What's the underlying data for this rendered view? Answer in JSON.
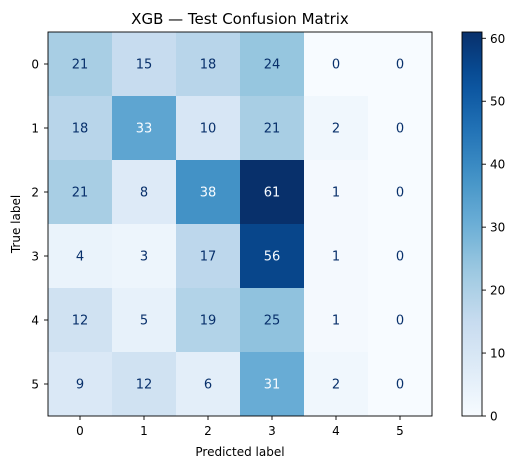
{
  "chart_data": {
    "type": "heatmap",
    "title": "XGB — Test Confusion Matrix",
    "xlabel": "Predicted label",
    "ylabel": "True label",
    "x_categories": [
      "0",
      "1",
      "2",
      "3",
      "4",
      "5"
    ],
    "y_categories": [
      "0",
      "1",
      "2",
      "3",
      "4",
      "5"
    ],
    "values": [
      [
        21,
        15,
        18,
        24,
        0,
        0
      ],
      [
        18,
        33,
        10,
        21,
        2,
        0
      ],
      [
        21,
        8,
        38,
        61,
        1,
        0
      ],
      [
        4,
        3,
        17,
        56,
        1,
        0
      ],
      [
        12,
        5,
        19,
        25,
        1,
        0
      ],
      [
        9,
        12,
        6,
        31,
        2,
        0
      ]
    ],
    "colormap": "Blues",
    "vmin": 0,
    "vmax": 61,
    "colorbar_ticks": [
      0,
      10,
      20,
      30,
      40,
      50,
      60
    ]
  }
}
